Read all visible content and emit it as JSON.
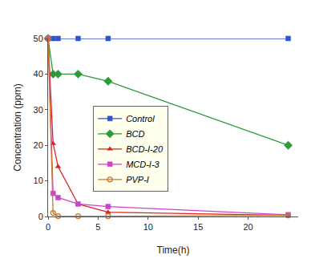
{
  "chart_data": {
    "type": "line",
    "x_label": "Time(h)",
    "y_label": "Concentration (ppm)",
    "xlim": [
      0,
      25
    ],
    "xticks": [
      0,
      5,
      10,
      15,
      20
    ],
    "ylim": [
      0,
      50
    ],
    "yticks": [
      0,
      10,
      20,
      30,
      40,
      50
    ],
    "grid": false,
    "legend": "center",
    "x": [
      0,
      0.5,
      1,
      3,
      6,
      24
    ],
    "series": [
      {
        "name": "Control",
        "color": "#3355cc",
        "marker": "square",
        "values": [
          50,
          50,
          50,
          50,
          50,
          50
        ]
      },
      {
        "name": "BCD",
        "color": "#2e9a3a",
        "marker": "diamond",
        "values": [
          50,
          40,
          40,
          40,
          38,
          20
        ]
      },
      {
        "name": "BCD-I-20",
        "color": "#dd2222",
        "marker": "triangle-up",
        "values": [
          50,
          20.5,
          14,
          3.5,
          1.2,
          0.3
        ]
      },
      {
        "name": "MCD-I-3",
        "color": "#cc44cc",
        "marker": "square",
        "values": [
          50,
          6.5,
          5.3,
          3.5,
          2.8,
          0.5
        ]
      },
      {
        "name": "PVP-I",
        "color": "#c87a28",
        "marker": "circle-open",
        "values": [
          50,
          1,
          0.1,
          0.1,
          0.1,
          0.3
        ]
      }
    ]
  }
}
